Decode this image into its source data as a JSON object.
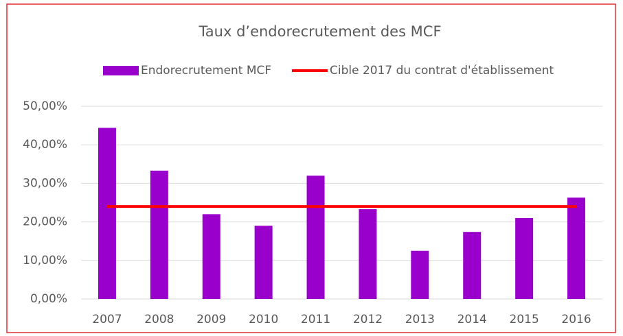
{
  "chart_data": {
    "type": "bar_line",
    "title": "Taux d’endorecrutement des MCF",
    "categories": [
      "2007",
      "2008",
      "2009",
      "2010",
      "2011",
      "2012",
      "2013",
      "2014",
      "2015",
      "2016"
    ],
    "series": [
      {
        "name": "Endorecrutement MCF",
        "type": "bar",
        "color": "#9900cc",
        "values": [
          44.4,
          33.3,
          22,
          19,
          32,
          23.3,
          12.5,
          17.4,
          21,
          26.3
        ]
      },
      {
        "name": "Cible 2017 du contrat d'établissement",
        "type": "line",
        "color": "#ff0000",
        "values": [
          24,
          24,
          24,
          24,
          24,
          24,
          24,
          24,
          24,
          24
        ]
      }
    ],
    "ylim": [
      0,
      50
    ],
    "yticks": [
      {
        "value": 0,
        "label": "0,00%"
      },
      {
        "value": 10,
        "label": "10,00%"
      },
      {
        "value": 20,
        "label": "20,00%"
      },
      {
        "value": 30,
        "label": "30,00%"
      },
      {
        "value": 40,
        "label": "40,00%"
      },
      {
        "value": 50,
        "label": "50,00%"
      }
    ],
    "grid": true,
    "legend": "top"
  }
}
